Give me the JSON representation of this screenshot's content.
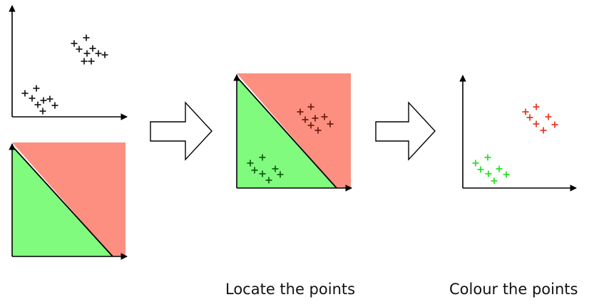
{
  "captions": {
    "locate": "Locate the points",
    "colour": "Colour the points"
  },
  "colors": {
    "region_red": "#fc8f80",
    "region_green": "#80fb7e",
    "cluster_red": "#e8331e",
    "cluster_green": "#22e01a",
    "mark_dark": "#1a1a1a",
    "mark_dark_green": "#0f5a10",
    "mark_dark_red": "#6a1a10"
  },
  "panels": [
    {
      "name": "raw-points-plot",
      "type": "axes-with-points",
      "clusters": [
        {
          "name": "upper-cluster",
          "mark": "black",
          "points": [
            [
              0.61,
              0.13
            ],
            [
              0.73,
              0.1
            ],
            [
              0.66,
              0.23
            ],
            [
              0.74,
              0.31
            ],
            [
              0.79,
              0.24
            ],
            [
              0.86,
              0.31
            ],
            [
              0.81,
              0.4
            ],
            [
              0.92,
              0.35
            ],
            [
              0.71,
              0.4
            ]
          ]
        },
        {
          "name": "lower-cluster",
          "mark": "black",
          "points": [
            [
              0.15,
              0.57
            ],
            [
              0.24,
              0.52
            ],
            [
              0.21,
              0.64
            ],
            [
              0.31,
              0.7
            ],
            [
              0.36,
              0.64
            ],
            [
              0.41,
              0.71
            ],
            [
              0.28,
              0.76
            ],
            [
              0.46,
              0.76
            ]
          ]
        }
      ]
    },
    {
      "name": "decision-region-plot",
      "type": "regions"
    },
    {
      "name": "located-points-plot",
      "type": "regions-with-points",
      "clusters": [
        {
          "name": "red-region-cluster",
          "mark": "dark-red"
        },
        {
          "name": "green-region-cluster",
          "mark": "dark-green"
        }
      ]
    },
    {
      "name": "coloured-points-plot",
      "type": "axes-with-points",
      "clusters": [
        {
          "name": "red-cluster",
          "mark": "red"
        },
        {
          "name": "green-cluster",
          "mark": "green"
        }
      ]
    }
  ],
  "arrows": [
    "arrow-1",
    "arrow-2"
  ]
}
